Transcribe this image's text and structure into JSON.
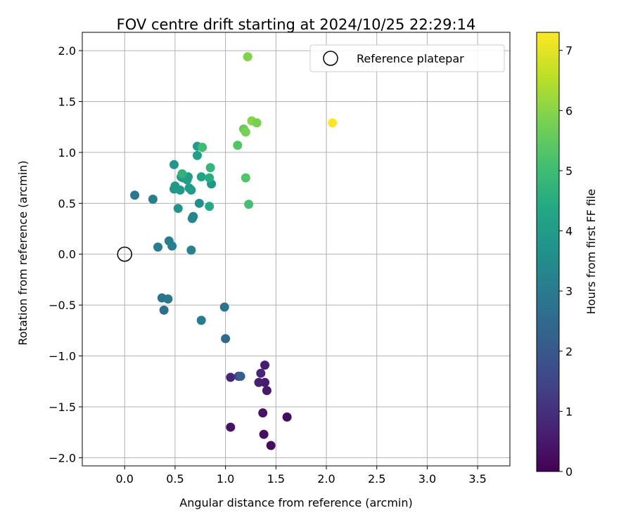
{
  "chart_data": {
    "type": "scatter",
    "title": "FOV centre drift starting at 2024/10/25 22:29:14",
    "xlabel": "Angular distance from reference (arcmin)",
    "ylabel": "Rotation from reference (arcmin)",
    "xlim": [
      -0.42,
      3.82
    ],
    "ylim": [
      -2.08,
      2.18
    ],
    "xticks": [
      0.0,
      0.5,
      1.0,
      1.5,
      2.0,
      2.5,
      3.0,
      3.5
    ],
    "xtick_labels": [
      "0.0",
      "0.5",
      "1.0",
      "1.5",
      "2.0",
      "2.5",
      "3.0",
      "3.5"
    ],
    "yticks": [
      2.0,
      1.5,
      1.0,
      0.5,
      0.0,
      -0.5,
      -1.0,
      -1.5,
      -2.0
    ],
    "ytick_labels": [
      "2.0",
      "1.5",
      "1.0",
      "0.5",
      "0.0",
      "−0.5",
      "−1.0",
      "−1.5",
      "−2.0"
    ],
    "grid": true,
    "legend": {
      "position": "top-right",
      "label": "Reference platepar"
    },
    "reference_point": {
      "x": 0.0,
      "y": 0.0
    },
    "colorbar": {
      "label": "Hours from first FF file",
      "range": [
        0,
        7.3
      ],
      "ticks": [
        0,
        1,
        2,
        3,
        4,
        5,
        6,
        7
      ],
      "tick_labels": [
        "0",
        "1",
        "2",
        "3",
        "4",
        "5",
        "6",
        "7"
      ],
      "colormap": "viridis"
    },
    "points": [
      {
        "x": 1.45,
        "y": -1.88,
        "h": 0.2
      },
      {
        "x": 1.38,
        "y": -1.77,
        "h": 0.3
      },
      {
        "x": 1.05,
        "y": -1.7,
        "h": 0.4
      },
      {
        "x": 1.61,
        "y": -1.6,
        "h": 0.25
      },
      {
        "x": 1.37,
        "y": -1.56,
        "h": 0.35
      },
      {
        "x": 1.41,
        "y": -1.34,
        "h": 0.5
      },
      {
        "x": 1.39,
        "y": -1.26,
        "h": 0.55
      },
      {
        "x": 1.33,
        "y": -1.26,
        "h": 0.65
      },
      {
        "x": 1.35,
        "y": -1.17,
        "h": 0.75
      },
      {
        "x": 1.39,
        "y": -1.09,
        "h": 0.6
      },
      {
        "x": 1.05,
        "y": -1.21,
        "h": 0.8
      },
      {
        "x": 1.13,
        "y": -1.2,
        "h": 1.3
      },
      {
        "x": 1.15,
        "y": -1.2,
        "h": 2.2
      },
      {
        "x": 1.0,
        "y": -0.83,
        "h": 2.5
      },
      {
        "x": 0.99,
        "y": -0.52,
        "h": 2.8
      },
      {
        "x": 0.76,
        "y": -0.65,
        "h": 3.0
      },
      {
        "x": 0.39,
        "y": -0.55,
        "h": 2.7
      },
      {
        "x": 0.37,
        "y": -0.43,
        "h": 2.8
      },
      {
        "x": 0.43,
        "y": -0.44,
        "h": 2.9
      },
      {
        "x": 0.44,
        "y": 0.13,
        "h": 3.0
      },
      {
        "x": 0.47,
        "y": 0.08,
        "h": 3.1
      },
      {
        "x": 0.33,
        "y": 0.07,
        "h": 3.0
      },
      {
        "x": 0.66,
        "y": 0.04,
        "h": 3.2
      },
      {
        "x": 0.1,
        "y": 0.58,
        "h": 2.9
      },
      {
        "x": 0.28,
        "y": 0.54,
        "h": 3.1
      },
      {
        "x": 0.53,
        "y": 0.45,
        "h": 3.7
      },
      {
        "x": 0.67,
        "y": 0.35,
        "h": 3.4
      },
      {
        "x": 0.68,
        "y": 0.37,
        "h": 3.3
      },
      {
        "x": 0.74,
        "y": 0.5,
        "h": 3.6
      },
      {
        "x": 0.84,
        "y": 0.47,
        "h": 4.4
      },
      {
        "x": 0.86,
        "y": 0.69,
        "h": 3.8
      },
      {
        "x": 0.49,
        "y": 0.64,
        "h": 3.8
      },
      {
        "x": 0.5,
        "y": 0.67,
        "h": 3.9
      },
      {
        "x": 0.55,
        "y": 0.63,
        "h": 3.9
      },
      {
        "x": 0.56,
        "y": 0.76,
        "h": 4.0
      },
      {
        "x": 0.58,
        "y": 0.75,
        "h": 4.0
      },
      {
        "x": 0.62,
        "y": 0.73,
        "h": 4.1
      },
      {
        "x": 0.63,
        "y": 0.76,
        "h": 4.1
      },
      {
        "x": 0.64,
        "y": 0.65,
        "h": 4.0
      },
      {
        "x": 0.66,
        "y": 0.63,
        "h": 4.0
      },
      {
        "x": 0.57,
        "y": 0.79,
        "h": 4.7
      },
      {
        "x": 0.76,
        "y": 0.76,
        "h": 4.2
      },
      {
        "x": 0.84,
        "y": 0.75,
        "h": 4.5
      },
      {
        "x": 0.85,
        "y": 0.85,
        "h": 4.8
      },
      {
        "x": 0.49,
        "y": 0.88,
        "h": 3.8
      },
      {
        "x": 0.72,
        "y": 0.97,
        "h": 4.1
      },
      {
        "x": 0.72,
        "y": 1.06,
        "h": 4.0
      },
      {
        "x": 0.77,
        "y": 1.05,
        "h": 5.0
      },
      {
        "x": 1.12,
        "y": 1.07,
        "h": 5.3
      },
      {
        "x": 1.2,
        "y": 0.75,
        "h": 5.3
      },
      {
        "x": 1.23,
        "y": 0.49,
        "h": 5.1
      },
      {
        "x": 1.18,
        "y": 1.23,
        "h": 5.6
      },
      {
        "x": 1.2,
        "y": 1.2,
        "h": 5.8
      },
      {
        "x": 1.26,
        "y": 1.31,
        "h": 6.0
      },
      {
        "x": 1.31,
        "y": 1.29,
        "h": 5.8
      },
      {
        "x": 1.22,
        "y": 1.94,
        "h": 5.9
      },
      {
        "x": 2.06,
        "y": 1.29,
        "h": 7.3
      }
    ]
  }
}
